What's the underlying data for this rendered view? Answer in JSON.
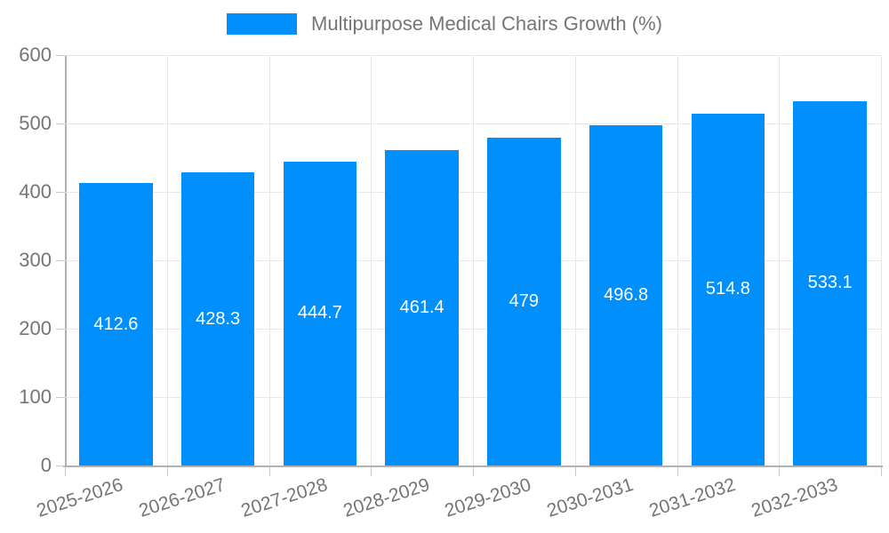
{
  "legend": {
    "label": "Multipurpose Medical Chairs Growth (%)"
  },
  "colors": {
    "bar": "#008FFB",
    "grid": "#e7e7e7",
    "axis": "#b0b0b0",
    "tick": "#c9c9c9",
    "label": "#757575",
    "value_text": "#ffffff"
  },
  "y_axis": {
    "tick_labels": [
      "0",
      "100",
      "200",
      "300",
      "400",
      "500",
      "600"
    ]
  },
  "chart_data": {
    "type": "bar",
    "title": "",
    "xlabel": "",
    "ylabel": "",
    "categories": [
      "2025-2026",
      "2026-2027",
      "2027-2028",
      "2028-2029",
      "2029-2030",
      "2030-2031",
      "2031-2032",
      "2032-2033"
    ],
    "series": [
      {
        "name": "Multipurpose Medical Chairs Growth (%)",
        "values": [
          412.6,
          428.3,
          444.7,
          461.4,
          479,
          496.8,
          514.8,
          533.1
        ],
        "data_labels": [
          "412.6",
          "428.3",
          "444.7",
          "461.4",
          "479",
          "496.8",
          "514.8",
          "533.1"
        ]
      }
    ],
    "ylim": [
      0,
      600
    ],
    "ytick_step": 100,
    "grid": true,
    "legend_position": "top",
    "bar_label_position": "center-inside",
    "xtick_rotation_deg": -18
  }
}
